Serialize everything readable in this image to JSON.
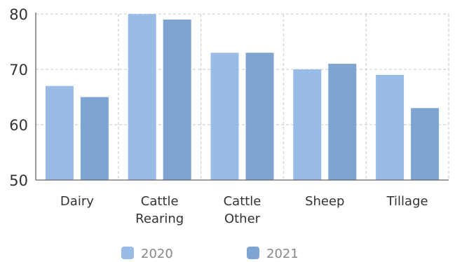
{
  "chart_data": {
    "type": "bar",
    "categories": [
      "Dairy",
      "Cattle Rearing",
      "Cattle Other",
      "Sheep",
      "Tillage"
    ],
    "category_lines": [
      [
        "Dairy"
      ],
      [
        "Cattle",
        "Rearing"
      ],
      [
        "Cattle",
        "Other"
      ],
      [
        "Sheep"
      ],
      [
        "Tillage"
      ]
    ],
    "series": [
      {
        "name": "2020",
        "values": [
          67,
          80,
          73,
          70,
          69
        ],
        "color": "#99bce6"
      },
      {
        "name": "2021",
        "values": [
          65,
          79,
          73,
          71,
          63
        ],
        "color": "#7ea5d1"
      }
    ],
    "title": "",
    "xlabel": "",
    "ylabel": "",
    "ylim": [
      50,
      80
    ],
    "yticks": [
      "50",
      "60",
      "70",
      "80"
    ],
    "grid": true,
    "legend": "bottom"
  }
}
